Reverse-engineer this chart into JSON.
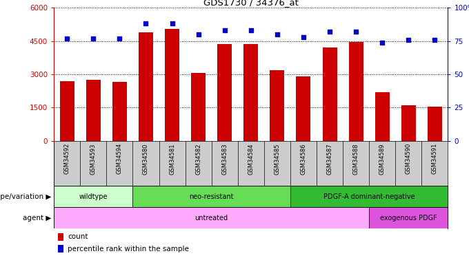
{
  "title": "GDS1730 / 34376_at",
  "samples": [
    "GSM34592",
    "GSM34593",
    "GSM34594",
    "GSM34580",
    "GSM34581",
    "GSM34582",
    "GSM34583",
    "GSM34584",
    "GSM34585",
    "GSM34586",
    "GSM34587",
    "GSM34588",
    "GSM34589",
    "GSM34590",
    "GSM34591"
  ],
  "counts": [
    2700,
    2750,
    2650,
    4900,
    5050,
    3050,
    4350,
    4350,
    3200,
    2900,
    4200,
    4450,
    2200,
    1600,
    1550
  ],
  "percentiles": [
    77,
    77,
    77,
    88,
    88,
    80,
    83,
    83,
    80,
    78,
    82,
    82,
    74,
    76,
    76
  ],
  "bar_color": "#cc0000",
  "dot_color": "#0000cc",
  "ylim_left": [
    0,
    6000
  ],
  "ylim_right": [
    0,
    100
  ],
  "yticks_left": [
    0,
    1500,
    3000,
    4500,
    6000
  ],
  "yticks_right": [
    0,
    25,
    50,
    75,
    100
  ],
  "ytick_labels_left": [
    "0",
    "1500",
    "3000",
    "4500",
    "6000"
  ],
  "ytick_labels_right": [
    "0",
    "25",
    "50",
    "75",
    "100%"
  ],
  "left_axis_color": "#cc0000",
  "right_axis_color": "#0000cc",
  "genotype_groups": [
    {
      "label": "wildtype",
      "start": 0,
      "end": 3,
      "color": "#ccffcc"
    },
    {
      "label": "neo-resistant",
      "start": 3,
      "end": 9,
      "color": "#66dd55"
    },
    {
      "label": "PDGF-A dominant-negative",
      "start": 9,
      "end": 15,
      "color": "#33bb33"
    }
  ],
  "agent_groups": [
    {
      "label": "untreated",
      "start": 0,
      "end": 12,
      "color": "#ffaaff"
    },
    {
      "label": "exogenous PDGF",
      "start": 12,
      "end": 15,
      "color": "#dd55dd"
    }
  ],
  "genotype_label": "genotype/variation",
  "agent_label": "agent",
  "legend_count_label": "count",
  "legend_pct_label": "percentile rank within the sample",
  "background_color": "#ffffff",
  "bar_width": 0.55,
  "sample_bg_color": "#cccccc"
}
